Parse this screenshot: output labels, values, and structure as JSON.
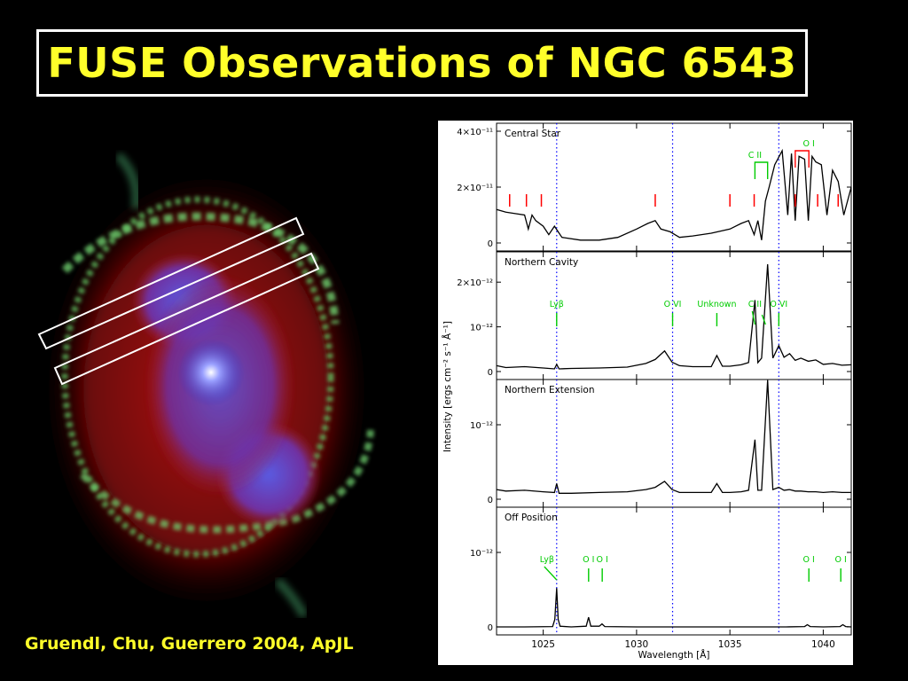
{
  "title": "FUSE Observations of NGC 6543",
  "credit": "Gruendl, Chu, Guerrero 2004, ApJL",
  "colors": {
    "title": "#ffff2a",
    "line_label": "#00cc00",
    "stellar_tick": "#ff0000",
    "marker": "#0000ff"
  },
  "chart_data": {
    "type": "line",
    "xlabel": "Wavelength [Å]",
    "ylabel": "Intensity [ergs cm⁻² s⁻¹ Å⁻¹]",
    "xlim": [
      1022.5,
      1041.5
    ],
    "xticks": [
      1025,
      1030,
      1035,
      1040
    ],
    "marker_lines": [
      1025.72,
      1031.93,
      1037.62
    ],
    "panels": [
      {
        "name": "Central Star",
        "ylim": [
          0,
          4e-11
        ],
        "yticks": [
          {
            "v": 0,
            "label": "0"
          },
          {
            "v": 2e-11,
            "label": "2×10⁻¹¹"
          },
          {
            "v": 4e-11,
            "label": "4×10⁻¹¹"
          }
        ],
        "spectrum": {
          "x": [
            1022.5,
            1023,
            1023.5,
            1024,
            1024.2,
            1024.4,
            1024.6,
            1025,
            1025.3,
            1025.6,
            1026,
            1027,
            1028,
            1029,
            1030,
            1030.6,
            1031,
            1031.3,
            1031.8,
            1032.3,
            1033,
            1034,
            1035,
            1035.6,
            1036,
            1036.3,
            1036.5,
            1036.7,
            1036.9,
            1037.1,
            1037.4,
            1037.8,
            1038.1,
            1038.3,
            1038.5,
            1038.7,
            1039,
            1039.2,
            1039.4,
            1039.6,
            1039.9,
            1040.2,
            1040.5,
            1040.8,
            1041.1,
            1041.5
          ],
          "y": [
            1.2e-11,
            1.1e-11,
            1.05e-11,
            1e-11,
            5e-12,
            1e-11,
            8e-12,
            6e-12,
            3e-12,
            6e-12,
            2e-12,
            1e-12,
            1e-12,
            2e-12,
            5e-12,
            7e-12,
            8e-12,
            5e-12,
            4e-12,
            2e-12,
            2.5e-12,
            3.5e-12,
            5e-12,
            7e-12,
            8e-12,
            3e-12,
            8e-12,
            1e-12,
            1.5e-11,
            2e-11,
            2.8e-11,
            3.3e-11,
            1e-11,
            3.2e-11,
            8e-12,
            3.1e-11,
            3e-11,
            8e-12,
            3.1e-11,
            2.9e-11,
            2.8e-11,
            1e-11,
            2.6e-11,
            2.2e-11,
            1e-11,
            2e-11
          ]
        },
        "stellar_ticks": [
          1023.2,
          1024.1,
          1024.9,
          1031,
          1035,
          1036.3,
          1038.5,
          1039.7,
          1040.8
        ],
        "line_ids": [
          {
            "label": "C II",
            "x": 1036.34,
            "ticks": [
              1036.34,
              1037.02
            ],
            "style": "bracket"
          },
          {
            "label": "O I",
            "x": 1039.23,
            "ticks": [
              1038.5,
              1039.23
            ],
            "style": "bracket"
          }
        ]
      },
      {
        "name": "Northern Cavity",
        "ylim": [
          0,
          2.5e-12
        ],
        "yticks": [
          {
            "v": 0,
            "label": "0"
          },
          {
            "v": 1e-12,
            "label": "10⁻¹²"
          },
          {
            "v": 2e-12,
            "label": "2×10⁻¹²"
          }
        ],
        "spectrum": {
          "x": [
            1022.5,
            1023,
            1024,
            1025,
            1025.6,
            1025.72,
            1025.85,
            1026.5,
            1028,
            1029.5,
            1030.5,
            1031,
            1031.5,
            1031.9,
            1032.3,
            1033,
            1034,
            1034.3,
            1034.6,
            1035,
            1035.6,
            1036,
            1036.34,
            1036.5,
            1036.7,
            1037.02,
            1037.3,
            1037.62,
            1037.9,
            1038.2,
            1038.5,
            1038.8,
            1039.2,
            1039.6,
            1040,
            1040.5,
            1041,
            1041.5
          ],
          "y": [
            1.3e-13,
            9e-14,
            1.1e-13,
            8e-14,
            6e-14,
            1.6e-13,
            6e-14,
            7e-14,
            8e-14,
            1e-13,
            1.8e-13,
            2.7e-13,
            4.6e-13,
            2.1e-13,
            1.3e-13,
            1.1e-13,
            1.1e-13,
            3.6e-13,
            1.2e-13,
            1.2e-13,
            1.5e-13,
            2e-13,
            1.6e-12,
            2e-13,
            3e-13,
            2.4e-12,
            3e-13,
            5.8e-13,
            3.2e-13,
            4e-13,
            2.5e-13,
            3e-13,
            2.3e-13,
            2.6e-13,
            1.6e-13,
            1.8e-13,
            1.4e-13,
            1.5e-13
          ]
        },
        "line_ids": [
          {
            "label": "Lyβ",
            "x": 1025.72,
            "ticks": [
              1025.72
            ]
          },
          {
            "label": "O VI",
            "x": 1031.93,
            "ticks": [
              1031.93
            ]
          },
          {
            "label": "Unknown",
            "x": 1034.3,
            "ticks": [
              1034.3
            ]
          },
          {
            "label": "C II",
            "x": 1036.34,
            "ticks": [
              1036.34
            ],
            "style": "slant"
          },
          {
            "label": "O VI",
            "x": 1037.62,
            "ticks": [
              1037.62
            ]
          }
        ]
      },
      {
        "name": "Northern Extension",
        "ylim": [
          0,
          1.5e-12
        ],
        "yticks": [
          {
            "v": 0,
            "label": "0"
          },
          {
            "v": 1e-12,
            "label": "10⁻¹²"
          }
        ],
        "spectrum": {
          "x": [
            1022.5,
            1023,
            1024,
            1025,
            1025.6,
            1025.72,
            1025.85,
            1026.5,
            1028,
            1029.5,
            1030.5,
            1031,
            1031.5,
            1031.9,
            1032.3,
            1033,
            1034,
            1034.3,
            1034.6,
            1035,
            1035.6,
            1036,
            1036.34,
            1036.5,
            1036.7,
            1037.02,
            1037.3,
            1037.62,
            1037.9,
            1038.2,
            1038.5,
            1038.8,
            1039.2,
            1039.6,
            1040,
            1040.5,
            1041,
            1041.5
          ],
          "y": [
            1.3e-13,
            1.1e-13,
            1.2e-13,
            1e-13,
            9e-14,
            2.1e-13,
            8e-14,
            8e-14,
            9e-14,
            1e-13,
            1.3e-13,
            1.6e-13,
            2.4e-13,
            1.3e-13,
            9e-14,
            9e-14,
            9e-14,
            2.1e-13,
            9e-14,
            9e-14,
            1e-13,
            1.2e-13,
            8e-13,
            1.2e-13,
            1.2e-13,
            1.6e-12,
            1.3e-13,
            1.6e-13,
            1.2e-13,
            1.3e-13,
            1.1e-13,
            1.1e-13,
            1e-13,
            1e-13,
            9e-14,
            1e-13,
            9e-14,
            9e-14
          ]
        },
        "line_ids": []
      },
      {
        "name": "Off Position",
        "ylim": [
          0,
          1.5e-12
        ],
        "yticks": [
          {
            "v": 0,
            "label": "0"
          },
          {
            "v": 1e-12,
            "label": "10⁻¹²"
          }
        ],
        "spectrum": {
          "x": [
            1022.5,
            1024,
            1025.5,
            1025.62,
            1025.72,
            1025.8,
            1025.9,
            1026.5,
            1027.3,
            1027.43,
            1027.55,
            1028,
            1028.15,
            1028.3,
            1030,
            1032,
            1034,
            1036,
            1038,
            1039,
            1039.15,
            1039.3,
            1040,
            1040.9,
            1041.05,
            1041.2,
            1041.5
          ],
          "y": [
            0,
            0,
            5e-15,
            1e-13,
            5.2e-13,
            1e-13,
            1e-14,
            0,
            1e-14,
            1.3e-13,
            1e-14,
            1e-14,
            4e-14,
            5e-15,
            0,
            0,
            0,
            0,
            0,
            5e-15,
            3e-14,
            5e-15,
            0,
            5e-15,
            3e-14,
            5e-15,
            0
          ]
        },
        "line_ids": [
          {
            "label": "Lyβ",
            "x": 1025.2,
            "ticks": [
              1025.72
            ],
            "style": "slant"
          },
          {
            "label": "O I",
            "x": 1027.43,
            "ticks": [
              1027.43
            ]
          },
          {
            "label": "O I",
            "x": 1028.16,
            "ticks": [
              1028.16
            ]
          },
          {
            "label": "O I",
            "x": 1039.23,
            "ticks": [
              1039.23
            ]
          },
          {
            "label": "O I",
            "x": 1040.94,
            "ticks": [
              1040.94
            ]
          }
        ]
      }
    ]
  }
}
